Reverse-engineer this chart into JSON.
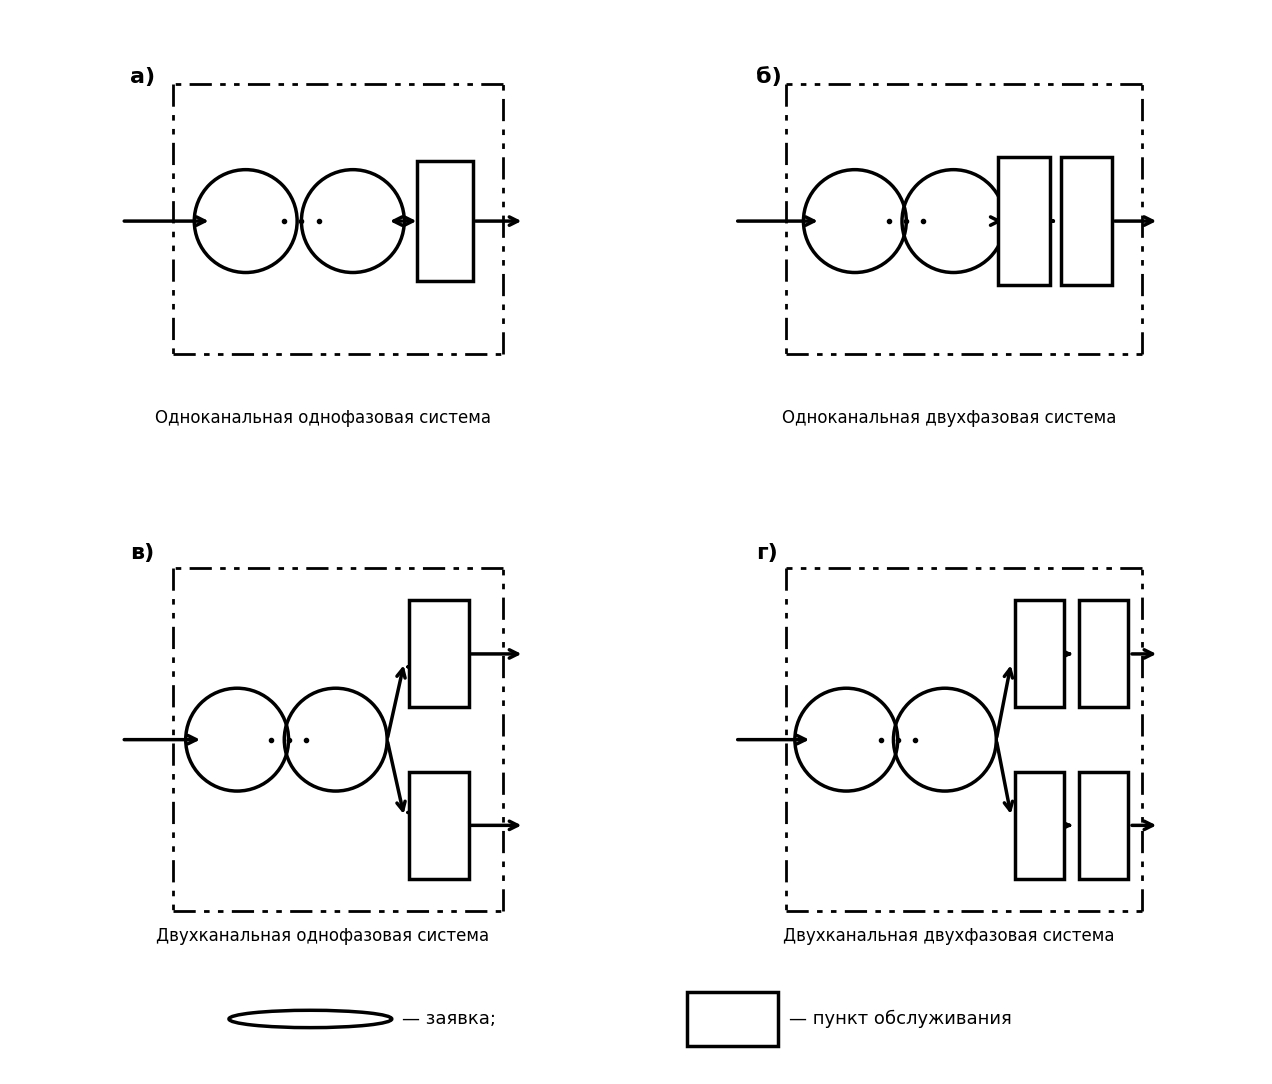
{
  "title_a": "а)",
  "title_b": "б)",
  "title_c": "в)",
  "title_d": "г)",
  "label_a": "Одноканальная однофазовая система",
  "label_b": "Одноканальная двухфазовая система",
  "label_c": "Двухканальная однофазовая система",
  "label_d": "Двухканальная двухфазовая система",
  "legend_circle": "— заявка;",
  "legend_rect": "— пункт обслуживания",
  "bg_color": "#ffffff",
  "line_color": "#000000",
  "dash_pattern": [
    8,
    4,
    2,
    4
  ]
}
